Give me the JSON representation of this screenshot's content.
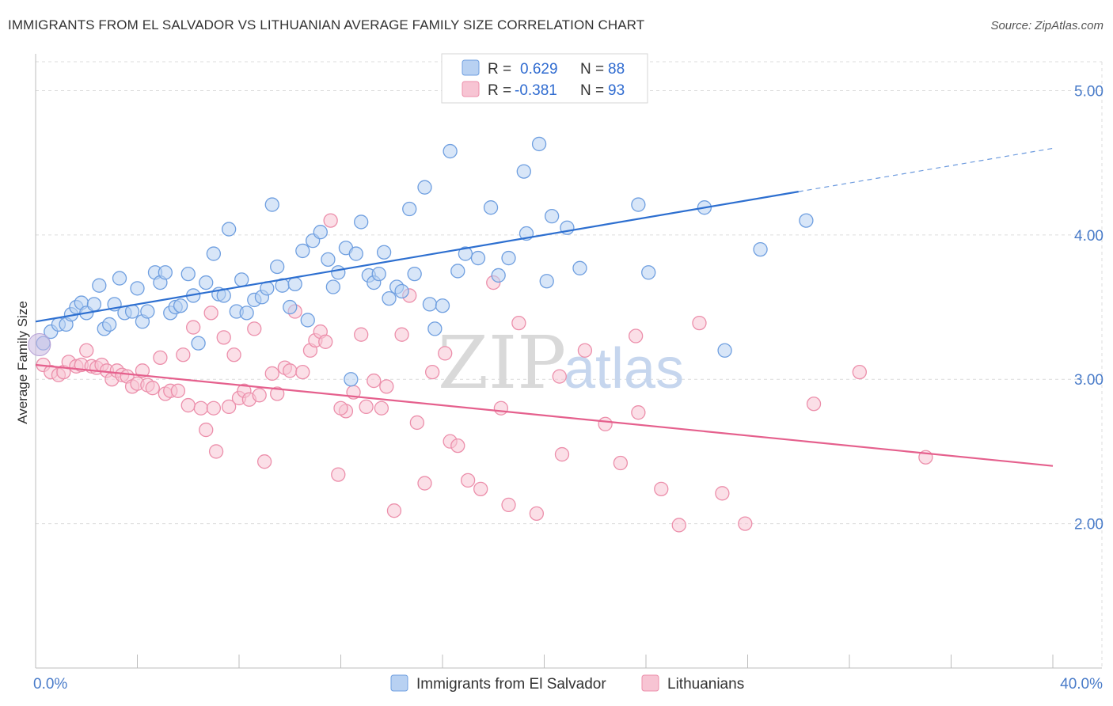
{
  "title": "IMMIGRANTS FROM EL SALVADOR VS LITHUANIAN AVERAGE FAMILY SIZE CORRELATION CHART",
  "source": "Source: ZipAtlas.com",
  "watermark": {
    "zip": "ZIP",
    "atlas": "atlas"
  },
  "colors": {
    "blue_fill": "#b8d1f2",
    "blue_stroke": "#6f9fe0",
    "blue_line": "#2d6fd0",
    "pink_fill": "#f7c4d3",
    "pink_stroke": "#ec8fab",
    "pink_line": "#e5608d",
    "grid": "#dcdcdc",
    "tick_label": "#4a7cc9"
  },
  "legend": {
    "rows": [
      {
        "r_label": "R =",
        "r_value": "0.629",
        "n_label": "N =",
        "n_value": "88"
      },
      {
        "r_label": "R =",
        "r_value": "-0.381",
        "n_label": "N =",
        "n_value": "93"
      }
    ]
  },
  "chart_data": {
    "type": "scatter",
    "title": "IMMIGRANTS FROM EL SALVADOR VS LITHUANIAN AVERAGE FAMILY SIZE CORRELATION CHART",
    "xlabel": "",
    "ylabel": "Average Family Size",
    "xlim": [
      0,
      40
    ],
    "ylim": [
      1.0,
      5.2
    ],
    "x_tick_labels": [
      "0.0%",
      "40.0%"
    ],
    "y_ticks": [
      2.0,
      3.0,
      4.0,
      5.0
    ],
    "y_tick_labels": [
      "2.00",
      "3.00",
      "4.00",
      "5.00"
    ],
    "grid": true,
    "legend_position": "top-center",
    "series": [
      {
        "name": "Immigrants from El Salvador",
        "color": "#6f9fe0",
        "trend": {
          "x0": 0.0,
          "y0": 3.4,
          "x1": 30.0,
          "y1": 4.3,
          "dashed_to_x": 40.0,
          "dashed_to_y": 4.6
        },
        "points": [
          [
            0.3,
            3.25
          ],
          [
            0.6,
            3.33
          ],
          [
            0.9,
            3.38
          ],
          [
            1.2,
            3.38
          ],
          [
            1.4,
            3.45
          ],
          [
            1.6,
            3.5
          ],
          [
            1.8,
            3.53
          ],
          [
            2.0,
            3.46
          ],
          [
            2.3,
            3.52
          ],
          [
            2.5,
            3.65
          ],
          [
            2.7,
            3.35
          ],
          [
            2.9,
            3.38
          ],
          [
            3.1,
            3.52
          ],
          [
            3.3,
            3.7
          ],
          [
            3.5,
            3.46
          ],
          [
            3.8,
            3.47
          ],
          [
            4.0,
            3.63
          ],
          [
            4.2,
            3.4
          ],
          [
            4.4,
            3.47
          ],
          [
            4.7,
            3.74
          ],
          [
            4.9,
            3.67
          ],
          [
            5.1,
            3.74
          ],
          [
            5.3,
            3.46
          ],
          [
            5.5,
            3.5
          ],
          [
            5.7,
            3.51
          ],
          [
            6.0,
            3.73
          ],
          [
            6.2,
            3.58
          ],
          [
            6.4,
            3.25
          ],
          [
            6.7,
            3.67
          ],
          [
            7.0,
            3.87
          ],
          [
            7.2,
            3.59
          ],
          [
            7.4,
            3.58
          ],
          [
            7.6,
            4.04
          ],
          [
            7.9,
            3.47
          ],
          [
            8.1,
            3.69
          ],
          [
            8.3,
            3.46
          ],
          [
            8.6,
            3.55
          ],
          [
            8.9,
            3.57
          ],
          [
            9.1,
            3.63
          ],
          [
            9.3,
            4.21
          ],
          [
            9.5,
            3.78
          ],
          [
            9.7,
            3.65
          ],
          [
            10.0,
            3.5
          ],
          [
            10.2,
            3.66
          ],
          [
            10.5,
            3.89
          ],
          [
            10.7,
            3.41
          ],
          [
            10.9,
            3.96
          ],
          [
            11.2,
            4.02
          ],
          [
            11.5,
            3.83
          ],
          [
            11.7,
            3.64
          ],
          [
            11.9,
            3.74
          ],
          [
            12.2,
            3.91
          ],
          [
            12.4,
            3.0
          ],
          [
            12.6,
            3.87
          ],
          [
            12.8,
            4.09
          ],
          [
            13.1,
            3.72
          ],
          [
            13.3,
            3.67
          ],
          [
            13.5,
            3.73
          ],
          [
            13.7,
            3.88
          ],
          [
            13.9,
            3.56
          ],
          [
            14.2,
            3.64
          ],
          [
            14.4,
            3.61
          ],
          [
            14.7,
            4.18
          ],
          [
            14.9,
            3.73
          ],
          [
            15.3,
            4.33
          ],
          [
            15.5,
            3.52
          ],
          [
            15.7,
            3.35
          ],
          [
            16.0,
            3.51
          ],
          [
            16.3,
            4.58
          ],
          [
            16.6,
            3.75
          ],
          [
            16.9,
            3.87
          ],
          [
            17.4,
            3.84
          ],
          [
            17.9,
            4.19
          ],
          [
            18.2,
            3.72
          ],
          [
            18.6,
            3.84
          ],
          [
            19.2,
            4.44
          ],
          [
            19.3,
            4.01
          ],
          [
            19.8,
            4.63
          ],
          [
            20.1,
            3.68
          ],
          [
            20.3,
            4.13
          ],
          [
            20.9,
            4.05
          ],
          [
            21.4,
            3.77
          ],
          [
            23.7,
            4.21
          ],
          [
            24.1,
            3.74
          ],
          [
            26.3,
            4.19
          ],
          [
            27.1,
            3.2
          ],
          [
            28.5,
            3.9
          ],
          [
            30.3,
            4.1
          ]
        ]
      },
      {
        "name": "Lithuanians",
        "color": "#ec8fab",
        "trend": {
          "x0": 0.0,
          "y0": 3.1,
          "x1": 40.0,
          "y1": 2.4
        },
        "points": [
          [
            0.3,
            3.1
          ],
          [
            0.6,
            3.05
          ],
          [
            0.9,
            3.03
          ],
          [
            1.1,
            3.05
          ],
          [
            1.3,
            3.12
          ],
          [
            1.6,
            3.09
          ],
          [
            1.8,
            3.1
          ],
          [
            2.0,
            3.2
          ],
          [
            2.2,
            3.09
          ],
          [
            2.4,
            3.08
          ],
          [
            2.6,
            3.1
          ],
          [
            2.8,
            3.06
          ],
          [
            3.0,
            3.0
          ],
          [
            3.2,
            3.06
          ],
          [
            3.4,
            3.03
          ],
          [
            3.6,
            3.02
          ],
          [
            3.8,
            2.95
          ],
          [
            4.0,
            2.97
          ],
          [
            4.2,
            3.06
          ],
          [
            4.4,
            2.96
          ],
          [
            4.6,
            2.94
          ],
          [
            4.9,
            3.15
          ],
          [
            5.1,
            2.9
          ],
          [
            5.3,
            2.92
          ],
          [
            5.6,
            2.92
          ],
          [
            5.8,
            3.17
          ],
          [
            6.0,
            2.82
          ],
          [
            6.2,
            3.36
          ],
          [
            6.5,
            2.8
          ],
          [
            6.7,
            2.65
          ],
          [
            6.9,
            3.46
          ],
          [
            7.1,
            2.5
          ],
          [
            7.4,
            3.29
          ],
          [
            7.6,
            2.81
          ],
          [
            7.8,
            3.17
          ],
          [
            8.0,
            2.87
          ],
          [
            8.2,
            2.92
          ],
          [
            8.4,
            2.86
          ],
          [
            8.6,
            3.35
          ],
          [
            8.8,
            2.89
          ],
          [
            9.0,
            2.43
          ],
          [
            9.3,
            3.04
          ],
          [
            9.5,
            2.9
          ],
          [
            9.8,
            3.08
          ],
          [
            10.0,
            3.06
          ],
          [
            10.2,
            3.47
          ],
          [
            10.5,
            3.05
          ],
          [
            10.8,
            3.2
          ],
          [
            11.0,
            3.27
          ],
          [
            11.2,
            3.33
          ],
          [
            11.4,
            3.26
          ],
          [
            11.6,
            4.1
          ],
          [
            11.9,
            2.34
          ],
          [
            12.2,
            2.78
          ],
          [
            12.5,
            2.91
          ],
          [
            12.8,
            3.31
          ],
          [
            13.0,
            2.81
          ],
          [
            13.3,
            2.99
          ],
          [
            13.6,
            2.8
          ],
          [
            13.8,
            2.95
          ],
          [
            14.1,
            2.09
          ],
          [
            14.4,
            3.31
          ],
          [
            14.7,
            3.58
          ],
          [
            15.0,
            2.7
          ],
          [
            15.3,
            2.28
          ],
          [
            15.6,
            3.05
          ],
          [
            16.1,
            3.18
          ],
          [
            16.3,
            2.57
          ],
          [
            16.6,
            2.54
          ],
          [
            17.0,
            2.3
          ],
          [
            17.5,
            2.24
          ],
          [
            18.0,
            3.67
          ],
          [
            18.3,
            2.8
          ],
          [
            18.6,
            2.13
          ],
          [
            19.0,
            3.39
          ],
          [
            19.7,
            2.07
          ],
          [
            20.6,
            3.02
          ],
          [
            20.7,
            2.48
          ],
          [
            21.6,
            3.2
          ],
          [
            22.4,
            2.69
          ],
          [
            23.0,
            2.42
          ],
          [
            23.6,
            3.3
          ],
          [
            23.7,
            2.77
          ],
          [
            24.6,
            2.24
          ],
          [
            25.3,
            1.99
          ],
          [
            26.1,
            3.39
          ],
          [
            27.0,
            2.21
          ],
          [
            27.9,
            2.0
          ],
          [
            30.6,
            2.83
          ],
          [
            32.4,
            3.05
          ],
          [
            35.0,
            2.46
          ],
          [
            12.0,
            2.8
          ],
          [
            7.0,
            2.8
          ]
        ]
      }
    ]
  },
  "bottom_legend": [
    {
      "label": "Immigrants from El Salvador"
    },
    {
      "label": "Lithuanians"
    }
  ]
}
